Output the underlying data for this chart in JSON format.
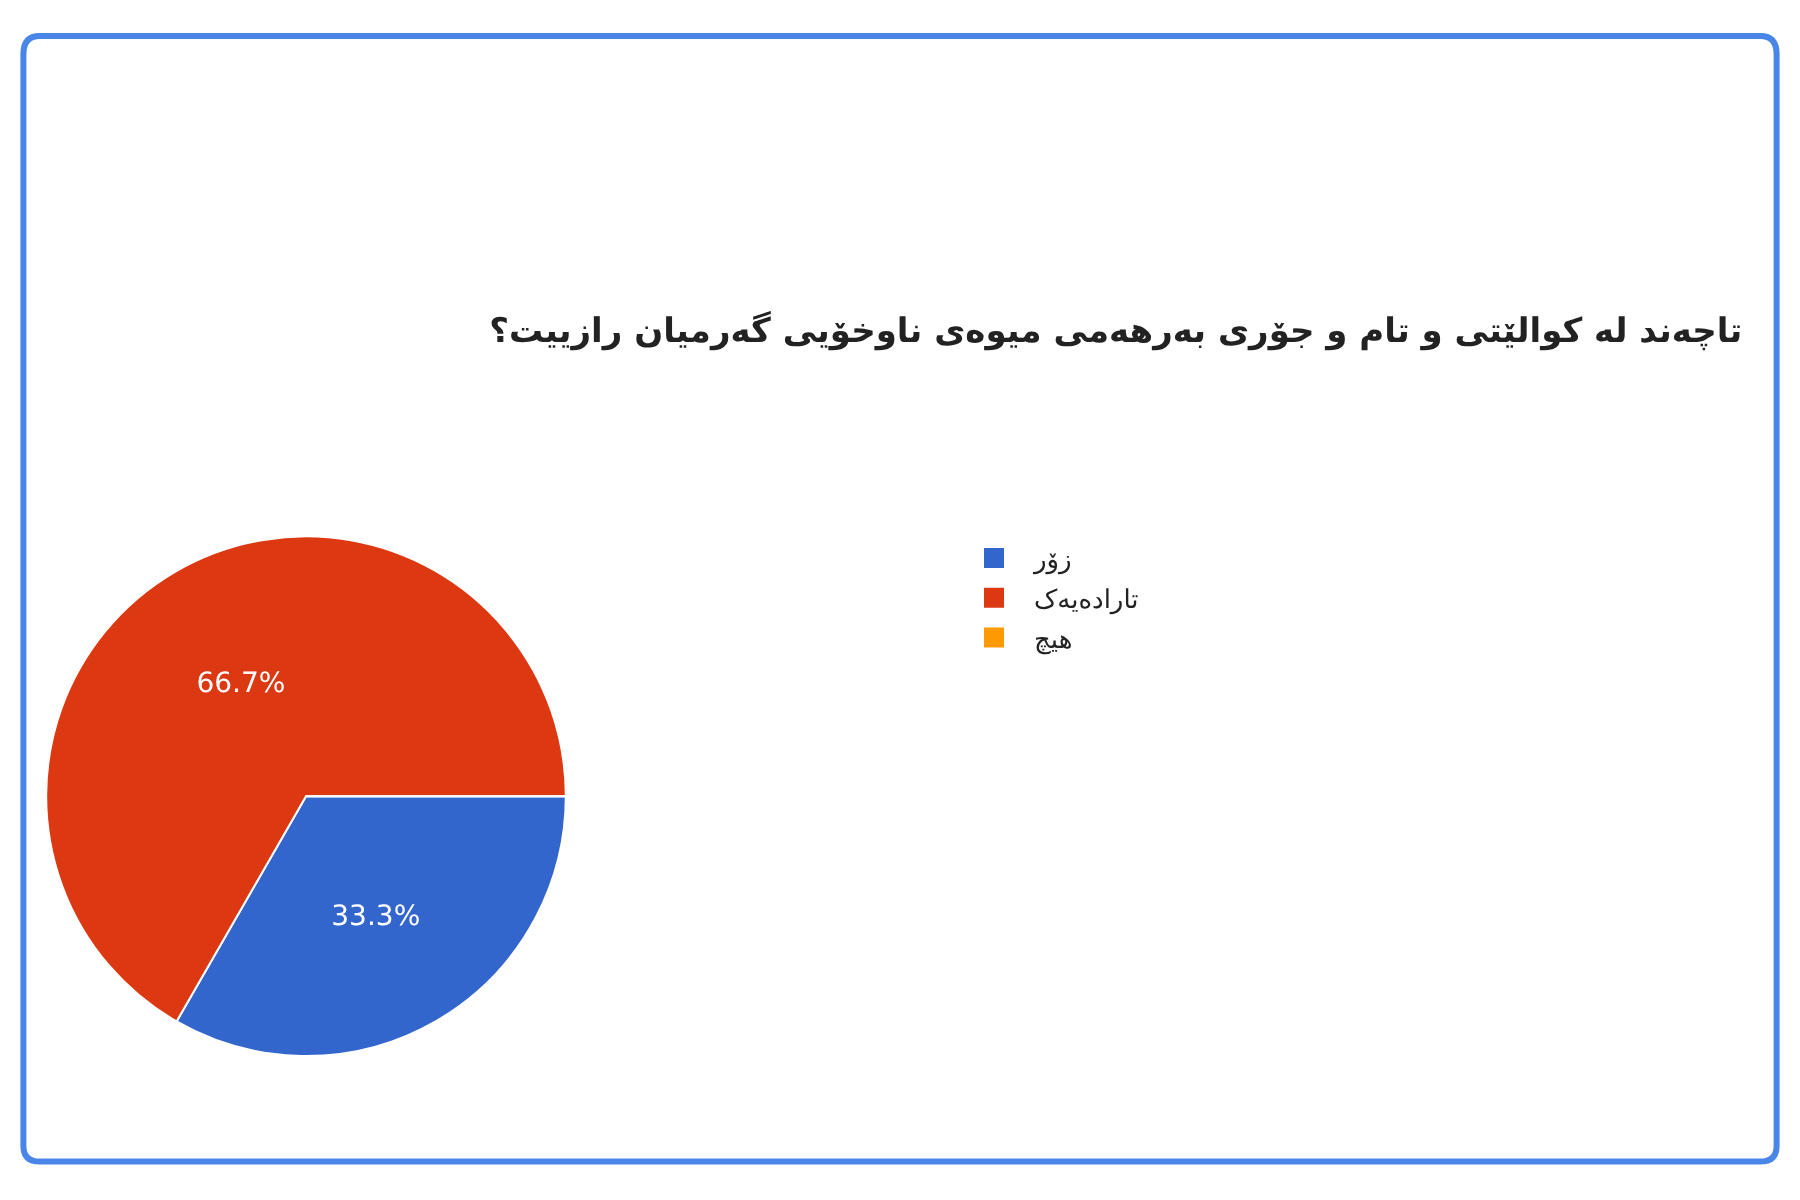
{
  "chart_data": {
    "type": "pie",
    "title": "تاچەند لە کوالێتی و تام و جۆری بەرهەمی میوەی ناوخۆیی گەرمیان رازییت؟",
    "categories": [
      "زۆر",
      "تارادەیەک",
      "هیچ"
    ],
    "values": [
      33.3,
      66.7,
      0
    ],
    "colors": [
      "#3366cc",
      "#dc3912",
      "#ff9900"
    ],
    "value_labels": [
      "33.3%",
      "66.7%",
      null
    ],
    "legend": "right"
  }
}
